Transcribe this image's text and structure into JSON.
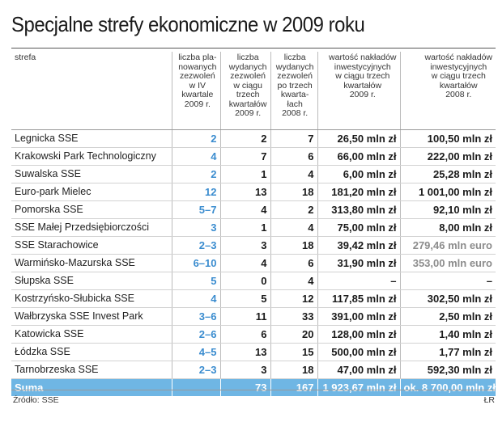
{
  "title": "Specjalne strefy ekonomiczne w 2009 roku",
  "headers": {
    "zone": "strefa",
    "planned": [
      "liczba pla-",
      "nowanych",
      "zezwoleń",
      "w IV",
      "kwartale",
      "2009 r."
    ],
    "issued2009": [
      "liczba",
      "wydanych",
      "zezwoleń",
      "w ciągu",
      "trzech",
      "kwartałów",
      "2009 r."
    ],
    "issued2008": [
      "liczba",
      "wydanych",
      "zezwoleń",
      "po trzech",
      "kwarta-",
      "łach",
      "2008 r."
    ],
    "invest2009": [
      "wartość nakładów",
      "inwestycyjnych",
      "w ciągu trzech",
      "kwartałów",
      "2009 r."
    ],
    "invest2008": [
      "wartość nakładów",
      "inwestycyjnych",
      "w ciągu trzech",
      "kwartałów",
      "2008 r."
    ]
  },
  "chart_data": {
    "type": "table",
    "title": "Specjalne strefy ekonomiczne w 2009 roku",
    "columns": [
      "strefa",
      "liczba planowanych zezwoleń w IV kwartale 2009 r.",
      "liczba wydanych zezwoleń w ciągu trzech kwartałów 2009 r.",
      "liczba wydanych zezwoleń po trzech kwartałach 2008 r.",
      "wartość nakładów inwestycyjnych w ciągu trzech kwartałów 2009 r.",
      "wartość nakładów inwestycyjnych w ciągu trzech kwartałów 2008 r."
    ],
    "rows": [
      {
        "name": "Legnicka SSE",
        "planned": "2",
        "issued2009": "2",
        "issued2008": "7",
        "invest2009": "26,50 mln zł",
        "invest2008": "100,50 mln zł"
      },
      {
        "name": "Krakowski Park Technologiczny",
        "planned": "4",
        "issued2009": "7",
        "issued2008": "6",
        "invest2009": "66,00 mln zł",
        "invest2008": "222,00 mln zł"
      },
      {
        "name": "Suwalska SSE",
        "planned": "2",
        "issued2009": "1",
        "issued2008": "4",
        "invest2009": "6,00 mln zł",
        "invest2008": "25,28 mln zł"
      },
      {
        "name": "Euro-park Mielec",
        "planned": "12",
        "issued2009": "13",
        "issued2008": "18",
        "invest2009": "181,20 mln zł",
        "invest2008": "1 001,00 mln zł"
      },
      {
        "name": "Pomorska SSE",
        "planned": "5–7",
        "issued2009": "4",
        "issued2008": "2",
        "invest2009": "313,80 mln zł",
        "invest2008": "92,10 mln zł"
      },
      {
        "name": "SSE Małej Przedsiębiorczości",
        "planned": "3",
        "issued2009": "1",
        "issued2008": "4",
        "invest2009": "75,00 mln zł",
        "invest2008": "8,00 mln zł"
      },
      {
        "name": "SSE Starachowice",
        "planned": "2–3",
        "issued2009": "3",
        "issued2008": "18",
        "invest2009": "39,42 mln zł",
        "invest2008": "279,46 mln euro"
      },
      {
        "name": "Warmińsko-Mazurska SSE",
        "planned": "6–10",
        "issued2009": "4",
        "issued2008": "6",
        "invest2009": "31,90 mln zł",
        "invest2008": "353,00 mln euro"
      },
      {
        "name": "Słupska SSE",
        "planned": "5",
        "issued2009": "0",
        "issued2008": "4",
        "invest2009": "–",
        "invest2008": "–"
      },
      {
        "name": "Kostrzyńsko-Słubicka SSE",
        "planned": "4",
        "issued2009": "5",
        "issued2008": "12",
        "invest2009": "117,85 mln zł",
        "invest2008": "302,50 mln zł"
      },
      {
        "name": "Wałbrzyska SSE Invest Park",
        "planned": "3–6",
        "issued2009": "11",
        "issued2008": "33",
        "invest2009": "391,00 mln zł",
        "invest2008": "2,50 mln zł"
      },
      {
        "name": "Katowicka SSE",
        "planned": "2–6",
        "issued2009": "6",
        "issued2008": "20",
        "invest2009": "128,00 mln zł",
        "invest2008": "1,40 mln zł"
      },
      {
        "name": "Łódzka SSE",
        "planned": "4–5",
        "issued2009": "13",
        "issued2008": "15",
        "invest2009": "500,00 mln zł",
        "invest2008": "1,77 mln zł"
      },
      {
        "name": "Tarnobrzeska SSE",
        "planned": "2–3",
        "issued2009": "3",
        "issued2008": "18",
        "invest2009": "47,00 mln zł",
        "invest2008": "592,30 mln zł"
      }
    ],
    "sum": {
      "name": "Suma",
      "planned": "",
      "issued2009": "73",
      "issued2008": "167",
      "invest2009": "1 923,67 mln zł",
      "invest2008": "ok. 8 700,00 mln zł"
    }
  },
  "colors": {
    "accent_blue": "#3a8ccf",
    "sum_row_bg": "#6fb6e4",
    "euro_gray": "#8c8c8c"
  },
  "footer": {
    "source": "Źródło: SSE",
    "credit": "ŁR"
  }
}
